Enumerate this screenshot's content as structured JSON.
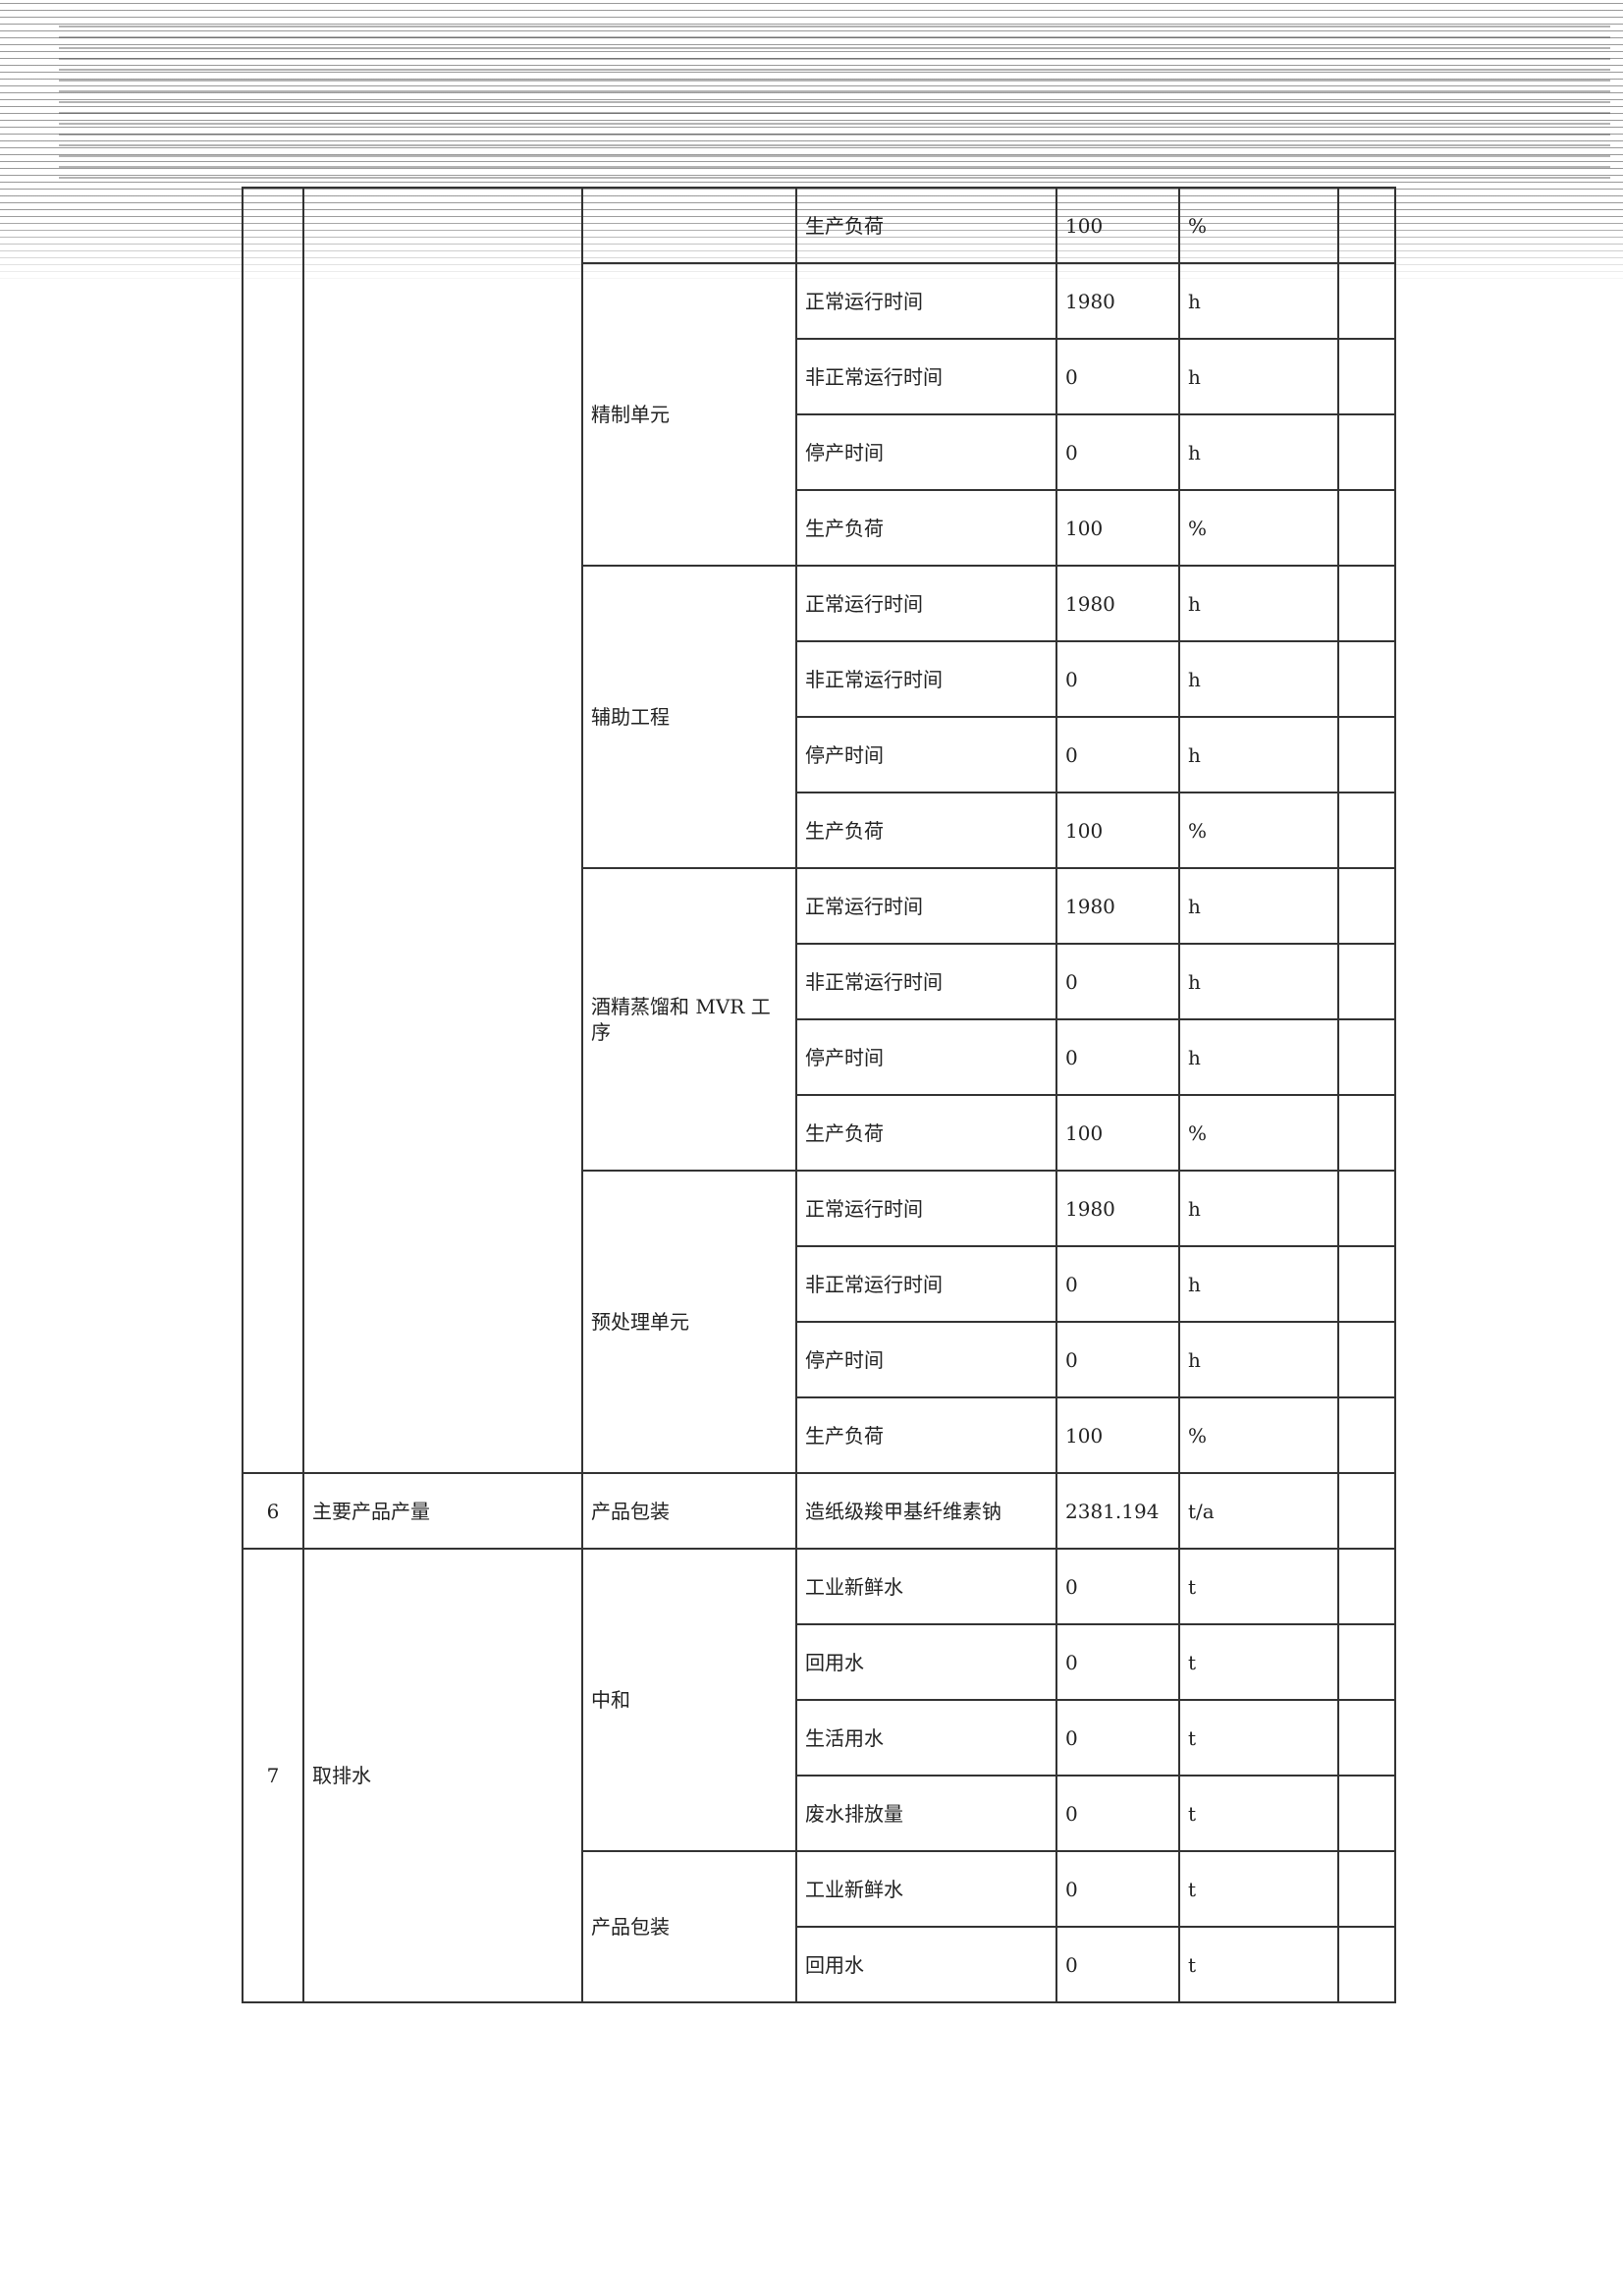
{
  "table": {
    "groups": [
      {
        "no": "",
        "category": "",
        "units": [
          {
            "name": "",
            "rows": [
              [
                "生产负荷",
                "100",
                "%"
              ]
            ]
          },
          {
            "name": "精制单元",
            "rows": [
              [
                "正常运行时间",
                "1980",
                "h"
              ],
              [
                "非正常运行时间",
                "0",
                "h"
              ],
              [
                "停产时间",
                "0",
                "h"
              ],
              [
                "生产负荷",
                "100",
                "%"
              ]
            ]
          },
          {
            "name": "辅助工程",
            "rows": [
              [
                "正常运行时间",
                "1980",
                "h"
              ],
              [
                "非正常运行时间",
                "0",
                "h"
              ],
              [
                "停产时间",
                "0",
                "h"
              ],
              [
                "生产负荷",
                "100",
                "%"
              ]
            ]
          },
          {
            "name": "酒精蒸馏和 MVR 工序",
            "rows": [
              [
                "正常运行时间",
                "1980",
                "h"
              ],
              [
                "非正常运行时间",
                "0",
                "h"
              ],
              [
                "停产时间",
                "0",
                "h"
              ],
              [
                "生产负荷",
                "100",
                "%"
              ]
            ]
          },
          {
            "name": "预处理单元",
            "rows": [
              [
                "正常运行时间",
                "1980",
                "h"
              ],
              [
                "非正常运行时间",
                "0",
                "h"
              ],
              [
                "停产时间",
                "0",
                "h"
              ],
              [
                "生产负荷",
                "100",
                "%"
              ]
            ]
          }
        ]
      },
      {
        "no": "6",
        "category": "主要产品产量",
        "units": [
          {
            "name": "产品包装",
            "rows": [
              [
                "造纸级羧甲基纤维素钠",
                "2381.194",
                "t/a"
              ]
            ]
          }
        ]
      },
      {
        "no": "7",
        "category": "取排水",
        "units": [
          {
            "name": "中和",
            "rows": [
              [
                "工业新鲜水",
                "0",
                "t"
              ],
              [
                "回用水",
                "0",
                "t"
              ],
              [
                "生活用水",
                "0",
                "t"
              ],
              [
                "废水排放量",
                "0",
                "t"
              ]
            ]
          },
          {
            "name": "产品包装",
            "rows": [
              [
                "工业新鲜水",
                "0",
                "t"
              ],
              [
                "回用水",
                "0",
                "t"
              ]
            ]
          }
        ]
      }
    ]
  }
}
